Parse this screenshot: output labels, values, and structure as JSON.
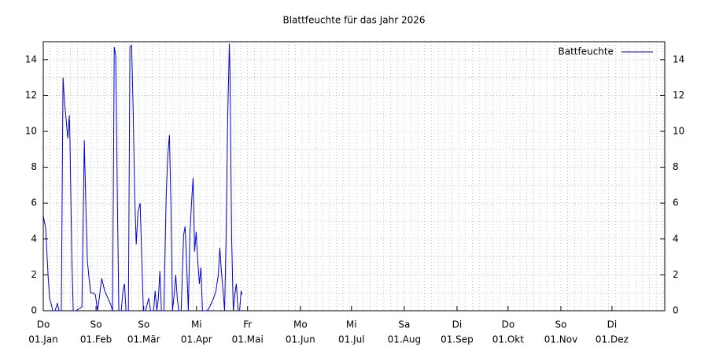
{
  "chart_data": {
    "type": "line",
    "title": "Blattfeuchte für das Jahr 2026",
    "x": [
      0.0,
      1.4,
      2.8,
      3.7,
      4.6,
      5.6,
      6.9,
      8.3,
      9.3,
      10.6,
      11.6,
      12.5,
      13.4,
      14.4,
      15.3,
      15.7,
      16.7,
      17.6,
      19.0,
      20.8,
      22.7,
      24.1,
      25.0,
      25.9,
      26.9,
      27.8,
      29.2,
      30.6,
      31.9,
      32.9,
      34.3,
      36.1,
      38.0,
      39.8,
      40.7,
      41.7,
      42.6,
      43.5,
      44.4,
      45.8,
      46.8,
      47.7,
      48.6,
      50.0,
      50.9,
      51.9,
      52.8,
      53.7,
      54.6,
      55.6,
      56.9,
      57.9,
      58.8,
      60.2,
      61.1,
      62.0,
      63.0,
      64.8,
      65.7,
      66.7,
      67.6,
      68.5,
      69.4,
      70.8,
      72.2,
      73.1,
      74.1,
      75.0,
      75.9,
      76.9,
      77.8,
      78.7,
      79.6,
      81.0,
      82.4,
      83.3,
      84.3,
      85.2,
      86.1,
      87.0,
      88.0,
      88.9,
      89.8,
      90.7,
      91.7,
      92.6,
      93.5,
      96.3,
      97.7,
      98.6,
      100.0,
      101.4,
      102.8,
      103.7,
      104.6,
      105.6,
      106.5,
      107.4,
      108.3,
      109.3,
      109.7,
      110.6,
      111.6,
      112.5,
      113.4,
      114.4,
      115.3,
      116.2,
      116.7
    ],
    "series": [
      {
        "name": "Battfeuchte",
        "color": "#0000cc",
        "values": [
          5.3,
          4.6,
          2.0,
          0.7,
          0.4,
          0,
          0,
          0.4,
          0,
          0,
          13.0,
          11.6,
          10.7,
          9.6,
          10.9,
          9.4,
          3.3,
          0,
          0,
          0.1,
          0.2,
          9.5,
          5.9,
          2.8,
          1.8,
          1.0,
          1.0,
          0.9,
          0,
          0.7,
          1.8,
          1.1,
          0.7,
          0.3,
          0,
          14.7,
          14.2,
          6.4,
          0,
          0,
          1.1,
          1.5,
          0,
          0,
          14.7,
          14.8,
          11.2,
          6.4,
          3.7,
          5.5,
          6.0,
          2.8,
          0,
          0,
          0.4,
          0.7,
          0,
          0,
          1.1,
          0,
          0.7,
          2.2,
          0,
          0,
          6.4,
          8.6,
          9.8,
          5.9,
          0,
          0.9,
          2.0,
          0.7,
          0,
          0,
          4.2,
          4.7,
          2.4,
          0,
          4.2,
          5.9,
          7.4,
          3.3,
          4.4,
          2.8,
          1.5,
          2.4,
          0,
          0,
          0.2,
          0.4,
          0.7,
          1.1,
          2.0,
          3.5,
          2.2,
          1.1,
          0,
          4.2,
          10.7,
          14.9,
          13.3,
          4.2,
          0,
          0.9,
          1.5,
          0,
          0,
          1.1,
          0.9
        ]
      }
    ],
    "xlim": [
      0,
      365
    ],
    "xticks": [
      {
        "value": 0,
        "label": "01.Jan",
        "weekday": "Do"
      },
      {
        "value": 31,
        "label": "01.Feb",
        "weekday": "So"
      },
      {
        "value": 59,
        "label": "01.Mär",
        "weekday": "So"
      },
      {
        "value": 90,
        "label": "01.Apr",
        "weekday": "Mi"
      },
      {
        "value": 120,
        "label": "01.Mai",
        "weekday": "Fr"
      },
      {
        "value": 151,
        "label": "01.Jun",
        "weekday": "Mo"
      },
      {
        "value": 181,
        "label": "01.Jul",
        "weekday": "Mi"
      },
      {
        "value": 212,
        "label": "01.Aug",
        "weekday": "Sa"
      },
      {
        "value": 243,
        "label": "01.Sep",
        "weekday": "Di"
      },
      {
        "value": 273,
        "label": "01.Okt",
        "weekday": "Do"
      },
      {
        "value": 304,
        "label": "01.Nov",
        "weekday": "So"
      },
      {
        "value": 334,
        "label": "01.Dez",
        "weekday": "Di"
      }
    ],
    "ylim": [
      0,
      15
    ],
    "yticks": [
      0,
      2,
      4,
      6,
      8,
      10,
      12,
      14
    ],
    "grid": true,
    "legend": "top-right"
  }
}
